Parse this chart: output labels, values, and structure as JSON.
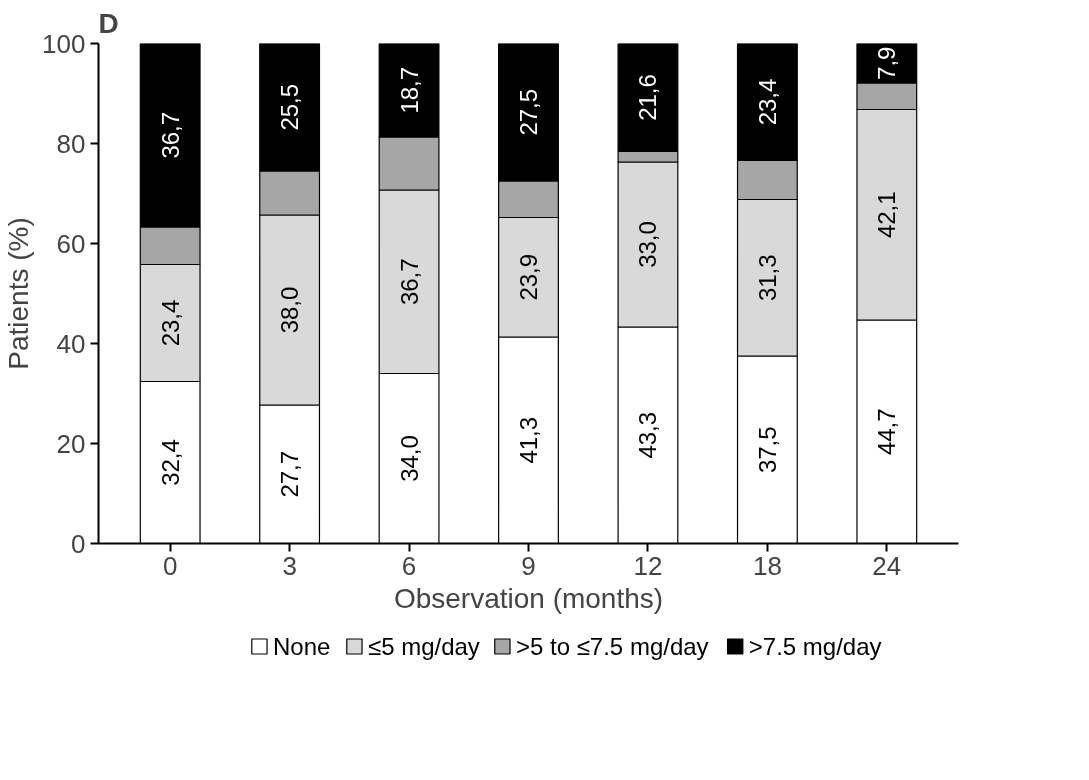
{
  "chart_data": {
    "type": "bar",
    "stacked": true,
    "annotations": [
      "D"
    ],
    "xlabel": "Observation (months)",
    "ylabel": "Patients (%)",
    "categories": [
      "0",
      "3",
      "6",
      "9",
      "12",
      "18",
      "24"
    ],
    "ylim": [
      0,
      100
    ],
    "yticks": [
      0,
      20,
      40,
      60,
      80,
      100
    ],
    "grid": false,
    "legend": "bottom",
    "series": [
      {
        "name": "None",
        "color": "#ffffff",
        "values": [
          32.4,
          27.7,
          34.0,
          41.3,
          43.3,
          37.5,
          44.7
        ],
        "value_labels": [
          "32,4",
          "27,7",
          "34,0",
          "41,3",
          "43,3",
          "37,5",
          "44,7"
        ]
      },
      {
        "name": "≤5 mg/day",
        "color": "#d9d9d9",
        "values": [
          23.4,
          38.0,
          36.7,
          23.9,
          33.0,
          31.3,
          42.1
        ],
        "value_labels": [
          "23,4",
          "38,0",
          "36,7",
          "23,9",
          "33,0",
          "31,3",
          "42,1"
        ]
      },
      {
        "name": ">5 to ≤7.5 mg/day",
        "color": "#a6a6a6",
        "values": [
          7.5,
          8.8,
          10.6,
          7.3,
          2.1,
          7.8,
          5.3
        ],
        "value_labels": [
          null,
          null,
          null,
          null,
          null,
          null,
          null
        ]
      },
      {
        "name": ">7.5 mg/day",
        "color": "#000000",
        "values": [
          36.7,
          25.5,
          18.7,
          27.5,
          21.6,
          23.4,
          7.9
        ],
        "value_labels": [
          "36,7",
          "25,5",
          "18,7",
          "27,5",
          "21,6",
          "23,4",
          "7,9"
        ]
      }
    ]
  }
}
